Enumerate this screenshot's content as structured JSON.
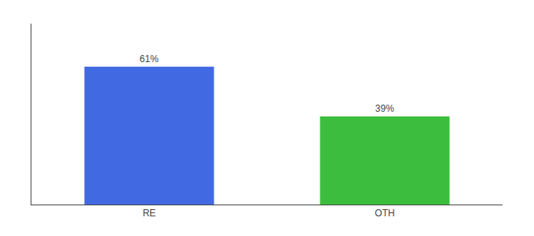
{
  "chart_data": {
    "type": "bar",
    "categories": [
      "RE",
      "OTH"
    ],
    "values": [
      61,
      39
    ],
    "value_labels": [
      "61%",
      "39%"
    ],
    "colors": [
      "#4169e1",
      "#3dbd3d"
    ],
    "ylim": [
      0,
      80
    ],
    "data_labels": true,
    "tick_labels": "x",
    "grid": false
  }
}
